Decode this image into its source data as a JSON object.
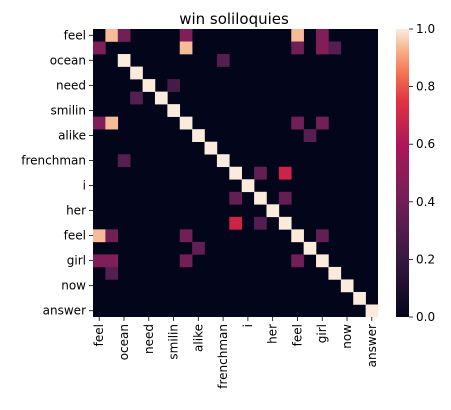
{
  "chart_data": {
    "type": "heatmap",
    "title": "win soliloquies",
    "xlabel": "",
    "ylabel": "",
    "x_tick_labels": [
      "feel",
      "ocean",
      "need",
      "smilin",
      "alike",
      "frenchman",
      "i",
      "her",
      "feel",
      "girl",
      "now",
      "answer"
    ],
    "y_tick_labels": [
      "feel",
      "ocean",
      "need",
      "smilin",
      "alike",
      "frenchman",
      "i",
      "her",
      "feel",
      "girl",
      "now",
      "answer"
    ],
    "n_rows": 23,
    "n_cols": 23,
    "tick_every": 2,
    "colorbar": {
      "range": [
        0.0,
        1.0
      ],
      "ticks": [
        "0.0",
        "0.2",
        "0.4",
        "0.6",
        "0.8",
        "1.0"
      ],
      "colormap": "rocket"
    },
    "cells": [
      [
        0,
        1,
        0.95
      ],
      [
        0,
        2,
        0.4
      ],
      [
        0,
        7,
        0.45
      ],
      [
        0,
        16,
        0.95
      ],
      [
        0,
        18,
        0.45
      ],
      [
        1,
        0,
        0.45
      ],
      [
        1,
        7,
        0.95
      ],
      [
        1,
        16,
        0.4
      ],
      [
        1,
        18,
        0.45
      ],
      [
        1,
        19,
        0.3
      ],
      [
        2,
        2,
        1.0
      ],
      [
        2,
        10,
        0.3
      ],
      [
        3,
        3,
        1.0
      ],
      [
        4,
        4,
        1.0
      ],
      [
        4,
        6,
        0.25
      ],
      [
        5,
        3,
        0.3
      ],
      [
        5,
        5,
        1.0
      ],
      [
        6,
        6,
        1.0
      ],
      [
        7,
        0,
        0.45
      ],
      [
        7,
        1,
        0.95
      ],
      [
        7,
        7,
        1.0
      ],
      [
        7,
        16,
        0.4
      ],
      [
        7,
        18,
        0.4
      ],
      [
        8,
        8,
        1.0
      ],
      [
        8,
        17,
        0.3
      ],
      [
        9,
        9,
        1.0
      ],
      [
        10,
        2,
        0.3
      ],
      [
        10,
        10,
        1.0
      ],
      [
        11,
        11,
        1.0
      ],
      [
        11,
        13,
        0.35
      ],
      [
        11,
        15,
        0.7
      ],
      [
        12,
        12,
        1.0
      ],
      [
        13,
        11,
        0.35
      ],
      [
        13,
        13,
        1.0
      ],
      [
        13,
        15,
        0.35
      ],
      [
        14,
        14,
        1.0
      ],
      [
        15,
        11,
        0.7
      ],
      [
        15,
        13,
        0.3
      ],
      [
        15,
        15,
        1.0
      ],
      [
        16,
        0,
        0.95
      ],
      [
        16,
        1,
        0.4
      ],
      [
        16,
        7,
        0.4
      ],
      [
        16,
        16,
        1.0
      ],
      [
        16,
        18,
        0.35
      ],
      [
        17,
        8,
        0.35
      ],
      [
        17,
        17,
        1.0
      ],
      [
        18,
        0,
        0.45
      ],
      [
        18,
        1,
        0.45
      ],
      [
        18,
        7,
        0.4
      ],
      [
        18,
        16,
        0.4
      ],
      [
        18,
        18,
        1.0
      ],
      [
        19,
        1,
        0.3
      ],
      [
        19,
        19,
        1.0
      ],
      [
        20,
        20,
        1.0
      ],
      [
        21,
        21,
        1.0
      ],
      [
        22,
        22,
        1.0
      ]
    ]
  }
}
